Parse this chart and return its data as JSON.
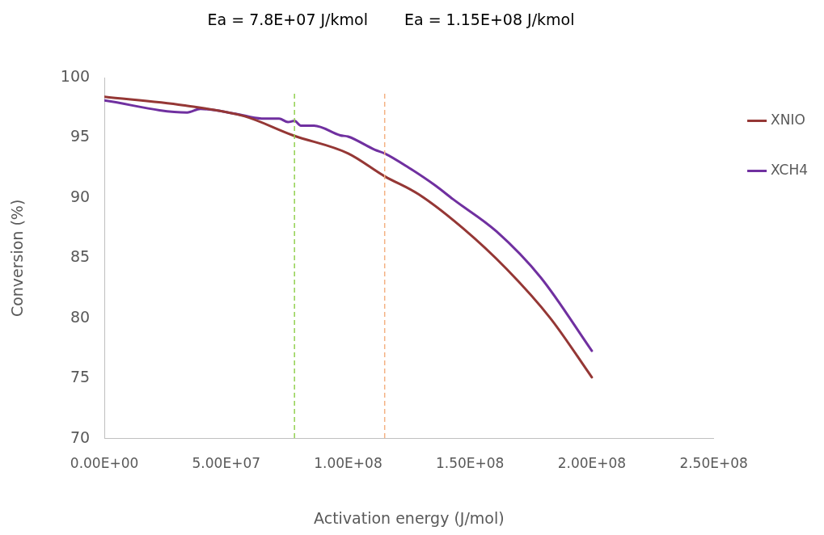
{
  "chart_data": {
    "type": "line",
    "xlabel": "Activation energy (J/mol)",
    "ylabel": "Conversion (%)",
    "xlim": [
      0,
      250000000
    ],
    "ylim": [
      70,
      100
    ],
    "xticks": [
      {
        "value": 0,
        "label": "0.00E+00"
      },
      {
        "value": 50000000,
        "label": "5.00E+07"
      },
      {
        "value": 100000000,
        "label": "1.00E+08"
      },
      {
        "value": 150000000,
        "label": "1.50E+08"
      },
      {
        "value": 200000000,
        "label": "2.00E+08"
      },
      {
        "value": 250000000,
        "label": "2.50E+08"
      }
    ],
    "yticks": [
      70,
      75,
      80,
      85,
      90,
      95,
      100
    ],
    "grid": false,
    "legend": "right",
    "marker": "none",
    "line_style": "solid",
    "series": [
      {
        "name": "XNIO",
        "color": "#953735",
        "x": [
          0,
          32300000,
          57300000,
          77400000,
          100000000,
          115000000,
          129000000,
          147000000,
          165000000,
          183000000,
          200000000
        ],
        "values": [
          98.4,
          97.7,
          96.8,
          95.2,
          93.7,
          91.8,
          90.3,
          87.5,
          84.1,
          80.0,
          75.1
        ]
      },
      {
        "name": "XCH4",
        "color": "#7030a0",
        "x": [
          0,
          34000000,
          39400000,
          53800000,
          64500000,
          71700000,
          75300000,
          78000000,
          80600000,
          86000000,
          96800000,
          100000000,
          111000000,
          115000000,
          125000000,
          136000000,
          143000000,
          161000000,
          179000000,
          200000000
        ],
        "values": [
          98.1,
          97.1,
          97.4,
          97.0,
          96.6,
          96.6,
          96.3,
          96.4,
          96.0,
          96.0,
          95.2,
          95.1,
          94.0,
          93.7,
          92.5,
          91.0,
          89.9,
          87.2,
          83.4,
          77.3
        ]
      }
    ],
    "annotations": [
      "Ea = 7.8E+07 J/kmol",
      "Ea = 1.15E+08 J/kmol"
    ],
    "ref_lines": [
      {
        "axis": "x",
        "value": 78000000,
        "color": "#92d050",
        "line_style": "dashed"
      },
      {
        "axis": "x",
        "value": 115000000,
        "color": "#f4b183",
        "line_style": "dashed"
      }
    ]
  }
}
